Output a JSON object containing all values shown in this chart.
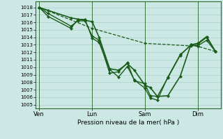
{
  "xlabel": "Pression niveau de la mer( hPa )",
  "bg_color": "#cce8e4",
  "grid_color": "#aacfca",
  "line_color": "#1a5c1a",
  "ylim": [
    1004.5,
    1018.8
  ],
  "yticks": [
    1005,
    1006,
    1007,
    1008,
    1009,
    1010,
    1011,
    1012,
    1013,
    1014,
    1015,
    1016,
    1017,
    1018
  ],
  "xtick_labels": [
    "Ven",
    "Lun",
    "Sam",
    "Dim"
  ],
  "xtick_positions": [
    0,
    30,
    60,
    90
  ],
  "xlim": [
    -2,
    103
  ],
  "vlines": [
    0,
    30,
    60,
    90
  ],
  "series": [
    {
      "x": [
        0,
        5,
        18,
        22,
        26,
        30,
        34,
        40,
        45,
        50,
        54,
        60,
        63,
        67,
        73,
        80,
        86,
        90,
        95,
        100
      ],
      "y": [
        1018,
        1017.2,
        1015.5,
        1016.2,
        1016.2,
        1014.2,
        1013.6,
        1009.2,
        1009.4,
        1010.6,
        1008.2,
        1007.8,
        1006.2,
        1006.1,
        1008.6,
        1011.6,
        1013.0,
        1013.1,
        1014.0,
        1012.1
      ],
      "style": "-",
      "marker": "D",
      "markersize": 2.2,
      "linewidth": 1.0
    },
    {
      "x": [
        0,
        5,
        18,
        22,
        26,
        30,
        34,
        40,
        45,
        50,
        54,
        60,
        63,
        67,
        73,
        80,
        86,
        90,
        95,
        100
      ],
      "y": [
        1018,
        1016.8,
        1015.2,
        1016.4,
        1016.4,
        1013.9,
        1013.3,
        1009.7,
        1008.7,
        1010.1,
        1008.3,
        1007.2,
        1005.9,
        1005.6,
        1008.7,
        1011.7,
        1012.9,
        1012.9,
        1013.6,
        1012.1
      ],
      "style": "-",
      "marker": "D",
      "markersize": 2.2,
      "linewidth": 1.0
    },
    {
      "x": [
        0,
        30,
        60,
        90,
        100
      ],
      "y": [
        1018,
        1015.2,
        1013.2,
        1012.8,
        1012.1
      ],
      "style": "--",
      "marker": "D",
      "markersize": 1.8,
      "linewidth": 0.9
    },
    {
      "x": [
        0,
        5,
        18,
        30,
        34,
        40,
        45,
        50,
        54,
        60,
        63,
        67,
        73,
        80,
        86,
        90,
        95,
        100
      ],
      "y": [
        1018,
        1017.6,
        1016.6,
        1016.1,
        1014.0,
        1009.8,
        1009.6,
        1010.5,
        1009.6,
        1007.6,
        1007.3,
        1006.1,
        1006.2,
        1008.8,
        1013.0,
        1013.2,
        1014.1,
        1012.1
      ],
      "style": "-",
      "marker": "D",
      "markersize": 2.2,
      "linewidth": 1.2
    }
  ]
}
